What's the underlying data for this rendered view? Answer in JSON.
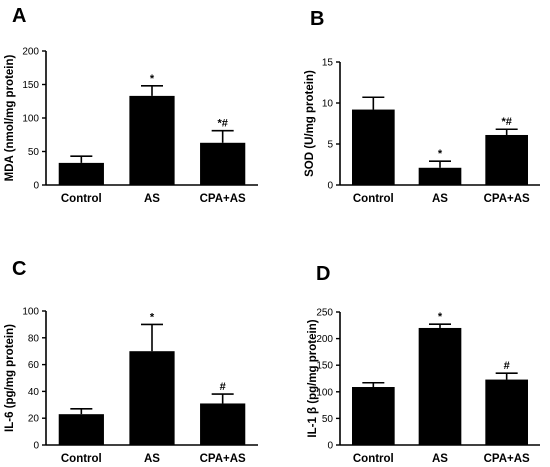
{
  "chart_data": [
    {
      "type": "bar",
      "panel": "A",
      "ylabel": "MDA (nmol/mg protein)",
      "categories": [
        "Control",
        "AS",
        "CPA+AS"
      ],
      "values": [
        33,
        133,
        63
      ],
      "errors": [
        10,
        15,
        18
      ],
      "annotations": [
        "",
        "*",
        "*#"
      ],
      "ylim": [
        0,
        200
      ],
      "yticks": [
        0,
        50,
        100,
        150,
        200
      ]
    },
    {
      "type": "bar",
      "panel": "B",
      "ylabel": "SOD (U/mg protein)",
      "categories": [
        "Control",
        "AS",
        "CPA+AS"
      ],
      "values": [
        9.2,
        2.1,
        6.1
      ],
      "errors": [
        1.5,
        0.8,
        0.7
      ],
      "annotations": [
        "",
        "*",
        "*#"
      ],
      "ylim": [
        0,
        15
      ],
      "yticks": [
        0,
        5,
        10,
        15
      ]
    },
    {
      "type": "bar",
      "panel": "C",
      "ylabel": "IL-6 (pg/mg protein)",
      "categories": [
        "Control",
        "AS",
        "CPA+AS"
      ],
      "values": [
        23,
        70,
        31
      ],
      "errors": [
        4,
        20,
        7
      ],
      "annotations": [
        "",
        "*",
        "#"
      ],
      "ylim": [
        0,
        100
      ],
      "yticks": [
        0,
        20,
        40,
        60,
        80,
        100
      ]
    },
    {
      "type": "bar",
      "panel": "D",
      "ylabel": "IL-1 β (pg/mg protein)",
      "categories": [
        "Control",
        "AS",
        "CPA+AS"
      ],
      "values": [
        109,
        220,
        123
      ],
      "errors": [
        8,
        7,
        12
      ],
      "annotations": [
        "",
        "*",
        "#"
      ],
      "ylim": [
        0,
        250
      ],
      "yticks": [
        0,
        50,
        100,
        150,
        200,
        250
      ]
    }
  ],
  "colors": {
    "bar": "#000000",
    "axis": "#000000",
    "background": "#ffffff"
  }
}
